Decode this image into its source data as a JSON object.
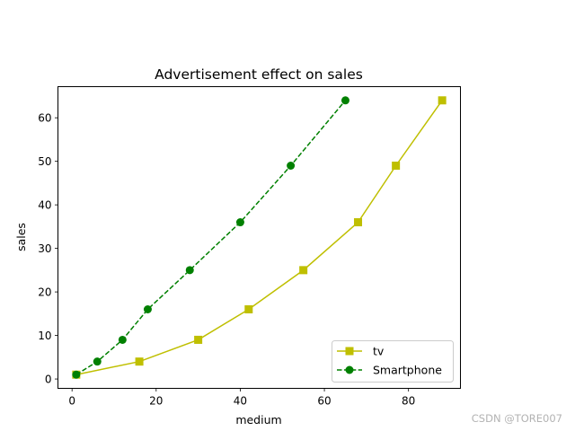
{
  "chart_data": {
    "type": "line",
    "title": "Advertisement effect on sales",
    "xlabel": "medium",
    "ylabel": "sales",
    "xlim": [
      -3.35,
      92.35
    ],
    "ylim": [
      -2.15,
      67.15
    ],
    "x_ticks": [
      0,
      20,
      40,
      60,
      80
    ],
    "y_ticks": [
      0,
      10,
      20,
      30,
      40,
      50,
      60
    ],
    "grid": false,
    "legend_position": "lower right",
    "series": [
      {
        "name": "tv",
        "color": "#bfbf00",
        "marker": "square",
        "linestyle": "solid",
        "x": [
          1,
          16,
          30,
          42,
          55,
          68,
          77,
          88
        ],
        "y": [
          1,
          4,
          9,
          16,
          25,
          36,
          49,
          64
        ]
      },
      {
        "name": "Smartphone",
        "color": "#008000",
        "marker": "circle",
        "linestyle": "dashed",
        "x": [
          1,
          6,
          12,
          18,
          28,
          40,
          52,
          65
        ],
        "y": [
          1,
          4,
          9,
          16,
          25,
          36,
          49,
          64
        ]
      }
    ]
  },
  "watermark": "CSDN @TORE007"
}
